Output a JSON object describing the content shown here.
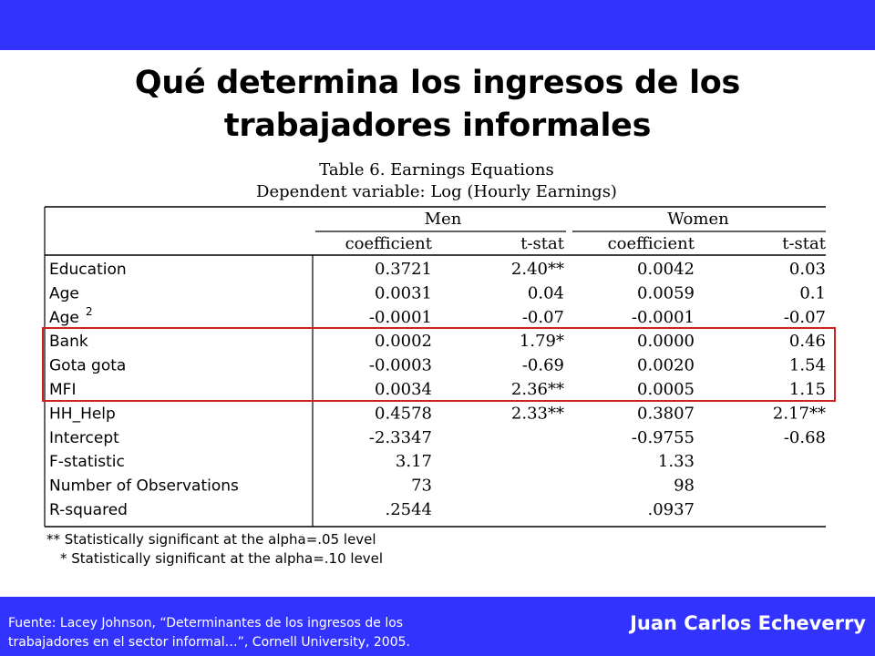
{
  "slide": {
    "title_line1": "Qué determina los ingresos de los",
    "title_line2": "trabajadores informales",
    "source_line1": "Fuente: Lacey Johnson, “Determinantes de los ingresos de los",
    "source_line2": "trabajadores en el sector informal…”, Cornell University, 2005.",
    "author": "Juan Carlos Echeverry",
    "colors": {
      "bar": "#3333ff",
      "highlight": "#cc2222",
      "text": "#000000"
    }
  },
  "table": {
    "caption1": "Table 6. Earnings Equations",
    "caption2": "Dependent variable: Log (Hourly Earnings)",
    "group_men": "Men",
    "group_women": "Women",
    "col_coef": "coefficient",
    "col_tstat": "t-stat",
    "rows": [
      {
        "label": "Education",
        "m_coef": "0.3721",
        "m_t": "2.40**",
        "w_coef": "0.0042",
        "w_t": "0.03"
      },
      {
        "label": "Age",
        "m_coef": "0.0031",
        "m_t": "0.04",
        "w_coef": "0.0059",
        "w_t": "0.1"
      },
      {
        "label": "Age",
        "sup": "2",
        "m_coef": "-0.0001",
        "m_t": "-0.07",
        "w_coef": "-0.0001",
        "w_t": "-0.07"
      },
      {
        "label": "Bank",
        "m_coef": "0.0002",
        "m_t": "1.79*",
        "w_coef": "0.0000",
        "w_t": "0.46"
      },
      {
        "label": "Gota gota",
        "m_coef": "-0.0003",
        "m_t": "-0.69",
        "w_coef": "0.0020",
        "w_t": "1.54"
      },
      {
        "label": "MFI",
        "m_coef": "0.0034",
        "m_t": "2.36**",
        "w_coef": "0.0005",
        "w_t": "1.15"
      },
      {
        "label": "HH_Help",
        "m_coef": "0.4578",
        "m_t": "2.33**",
        "w_coef": "0.3807",
        "w_t": "2.17**"
      },
      {
        "label": "Intercept",
        "m_coef": "-2.3347",
        "m_t": "",
        "w_coef": "-0.9755",
        "w_t": "-0.68"
      },
      {
        "label": "F-statistic",
        "m_coef": "3.17",
        "m_t": "",
        "w_coef": "1.33",
        "w_t": ""
      },
      {
        "label": "Number of Observations",
        "m_coef": "73",
        "m_t": "",
        "w_coef": "98",
        "w_t": ""
      },
      {
        "label": "R-squared",
        "m_coef": ".2544",
        "m_t": "",
        "w_coef": ".0937",
        "w_t": ""
      }
    ],
    "footnote1": "** Statistically significant at the alpha=.05 level",
    "footnote2": "* Statistically significant at the alpha=.10 level"
  }
}
